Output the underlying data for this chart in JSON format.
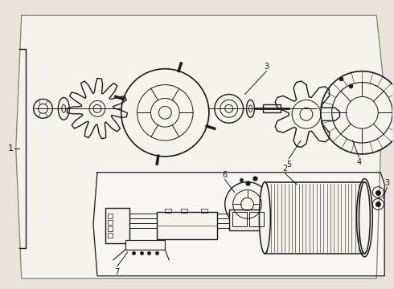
{
  "bg_color": "#e8e4dc",
  "line_color": "#1a1a1a",
  "panel_color": "#f5f3ee",
  "panel_edge_color": "#888880"
}
